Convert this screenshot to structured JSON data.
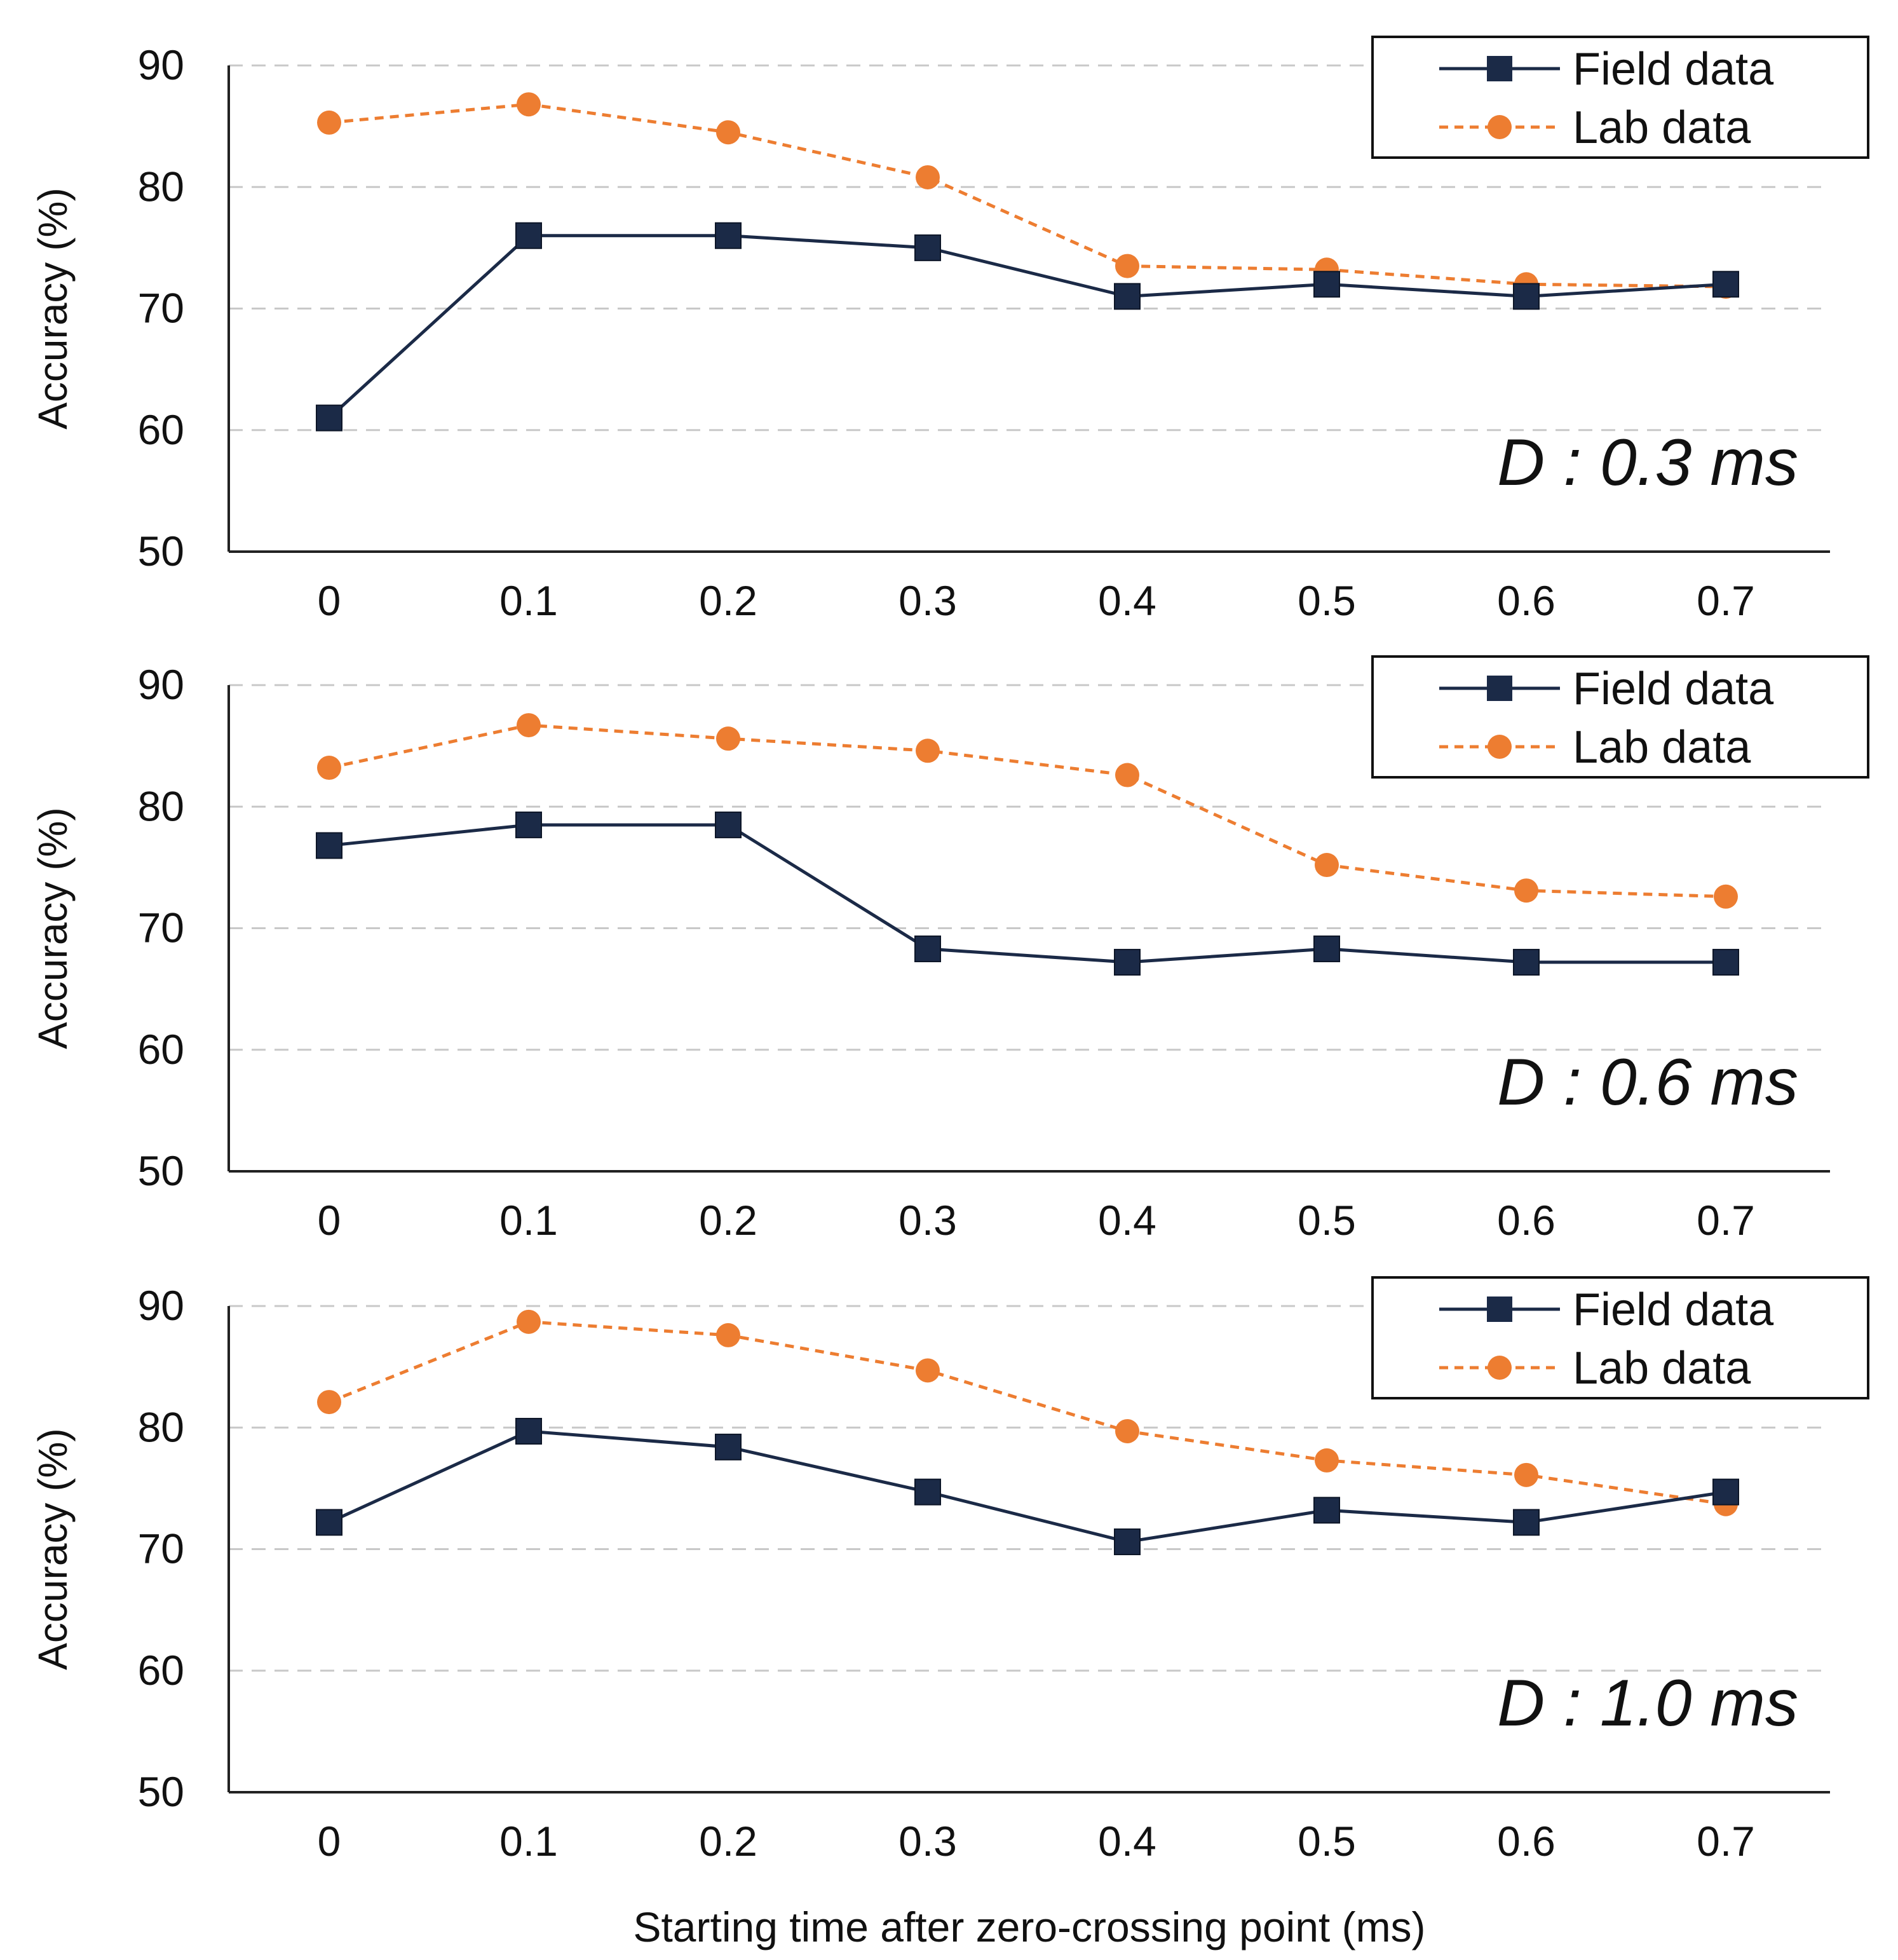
{
  "chart_data": {
    "shared": {
      "xlabel": "Starting time after zero-crossing point (ms)",
      "ylabel": "Accuracy (%)",
      "categories": [
        "0",
        "0.1",
        "0.2",
        "0.3",
        "0.4",
        "0.5",
        "0.6",
        "0.7"
      ],
      "yticks": [
        "50",
        "60",
        "70",
        "80",
        "90"
      ],
      "ylim": [
        50,
        90
      ],
      "grid": "horizontal dashed",
      "legend_position": "top-right",
      "colors": {
        "field": "#1b2a47",
        "lab": "#ed7d31",
        "grid": "#c8c8c8"
      }
    },
    "panels": [
      {
        "type": "line",
        "annotation": "D : 0.3 ms",
        "series": [
          {
            "name": "Field data",
            "marker": "square",
            "line": "solid",
            "values": [
              61,
              76,
              76,
              75,
              71,
              72,
              71,
              72
            ]
          },
          {
            "name": "Lab data",
            "marker": "circle",
            "line": "dashed",
            "values": [
              85.3,
              86.8,
              84.5,
              80.8,
              73.5,
              73.2,
              72,
              71.8
            ]
          }
        ]
      },
      {
        "type": "line",
        "annotation": "D : 0.6 ms",
        "series": [
          {
            "name": "Field data",
            "marker": "square",
            "line": "solid",
            "values": [
              76.8,
              78.5,
              78.5,
              68.3,
              67.2,
              68.3,
              67.2,
              67.2
            ]
          },
          {
            "name": "Lab data",
            "marker": "circle",
            "line": "dashed",
            "values": [
              83.2,
              86.7,
              85.6,
              84.6,
              82.6,
              75.2,
              73.1,
              72.6
            ]
          }
        ]
      },
      {
        "type": "line",
        "annotation": "D : 1.0 ms",
        "series": [
          {
            "name": "Field data",
            "marker": "square",
            "line": "solid",
            "values": [
              72.2,
              79.7,
              78.4,
              74.7,
              70.6,
              73.2,
              72.2,
              74.7
            ]
          },
          {
            "name": "Lab data",
            "marker": "circle",
            "line": "dashed",
            "values": [
              82.1,
              88.7,
              87.6,
              84.7,
              79.7,
              77.3,
              76.1,
              73.7
            ]
          }
        ]
      }
    ]
  }
}
